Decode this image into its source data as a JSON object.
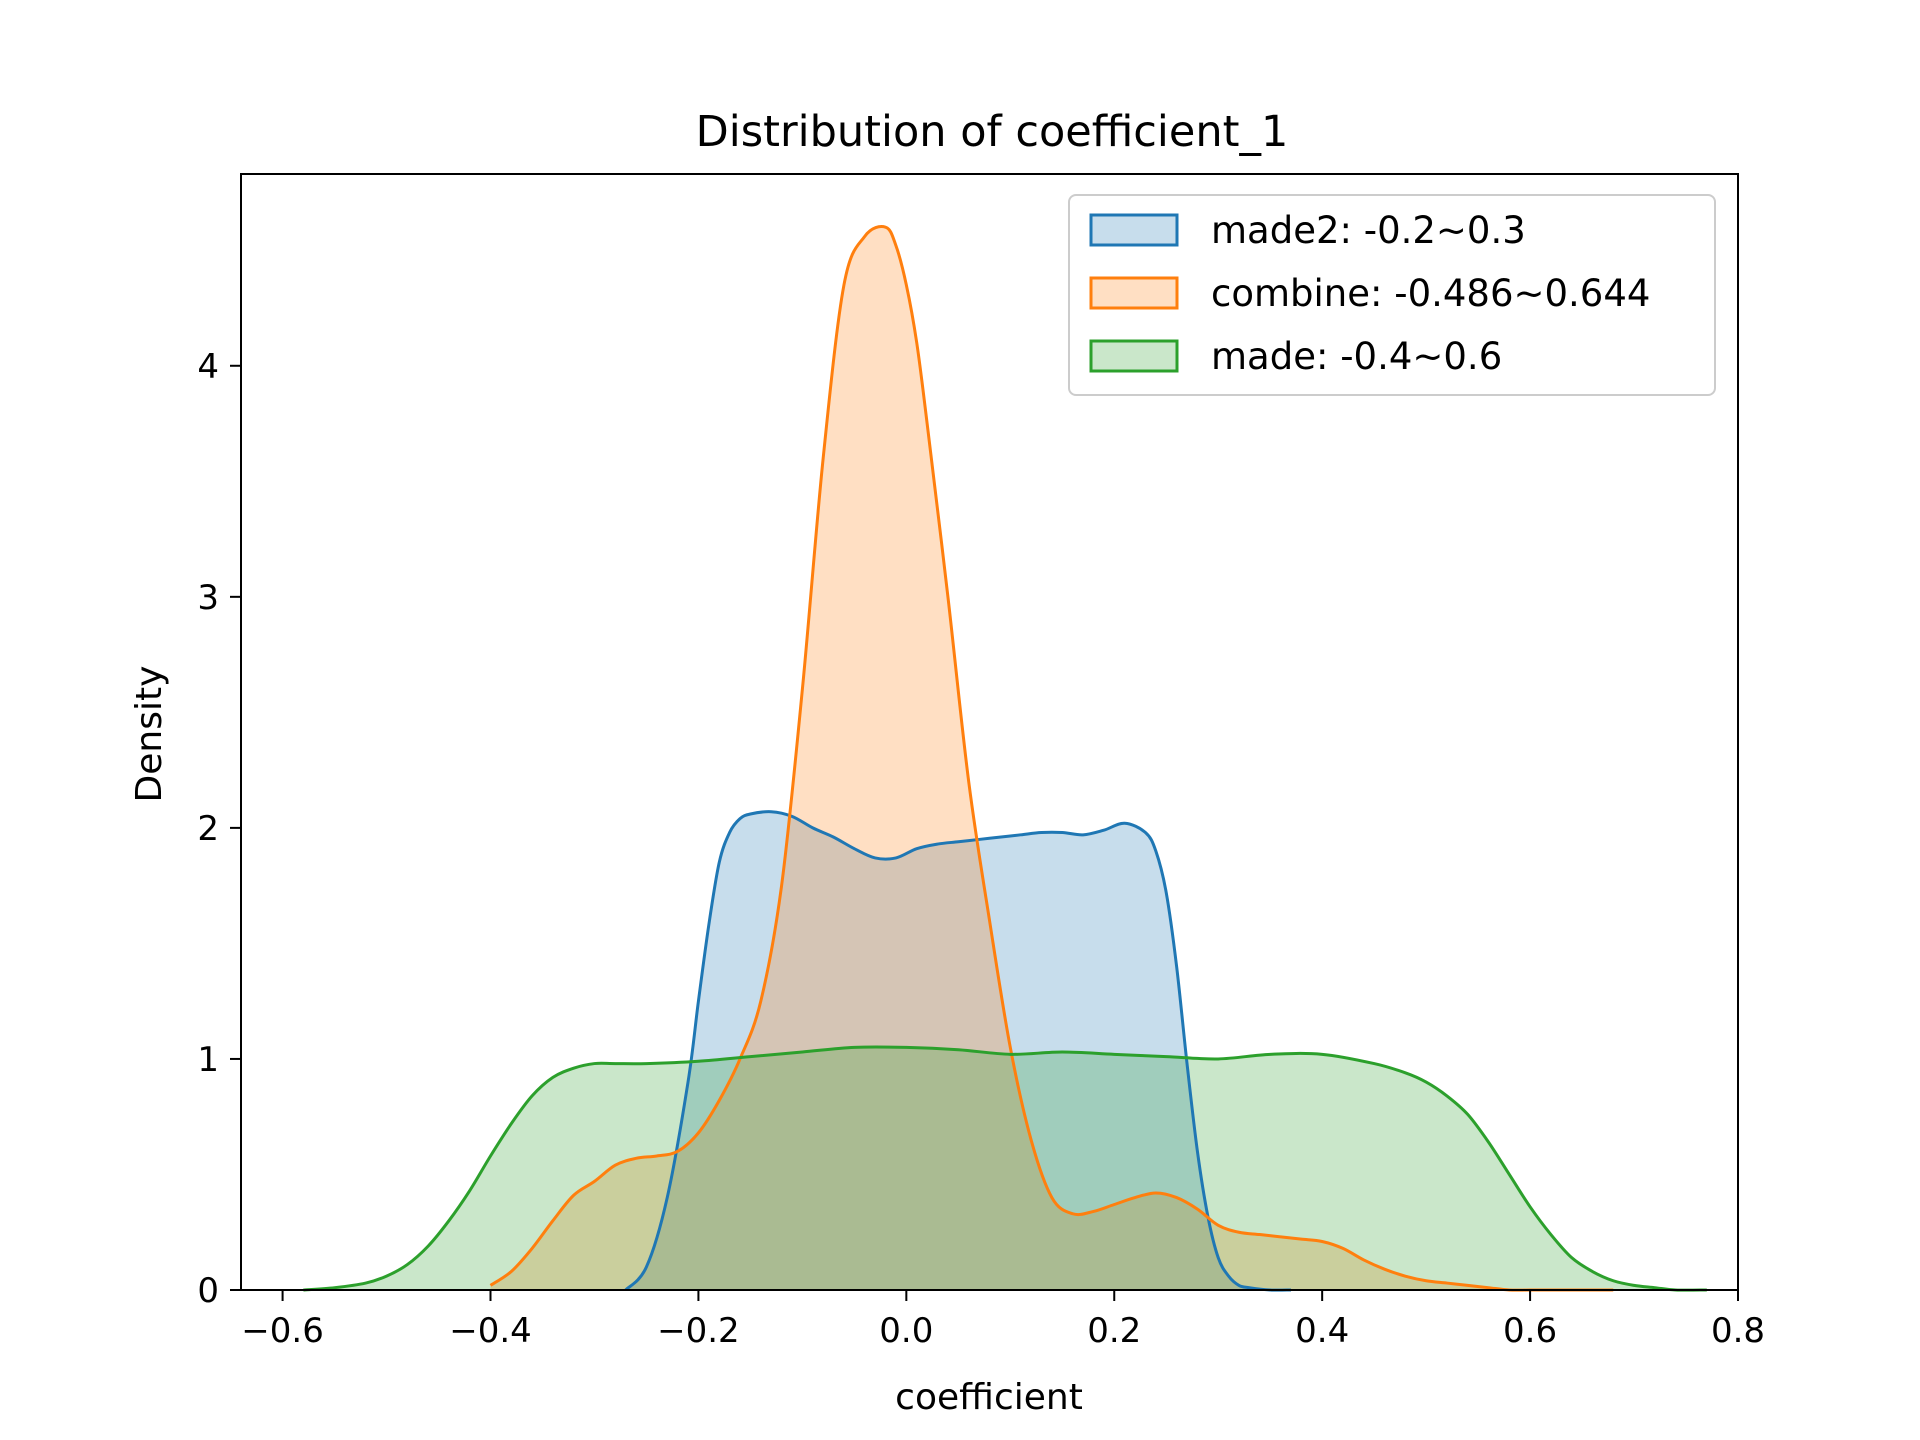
{
  "chart_data": {
    "type": "area",
    "kind": "kde",
    "title": "Distribution of coefficient_1",
    "xlabel": "coefficient",
    "ylabel": "Density",
    "xlim": [
      -0.64,
      0.8
    ],
    "ylim": [
      0,
      4.83
    ],
    "xticks": [
      -0.6,
      -0.4,
      -0.2,
      0.0,
      0.2,
      0.4,
      0.6,
      0.8
    ],
    "xtick_labels": [
      "−0.6",
      "−0.4",
      "−0.2",
      "0.0",
      "0.2",
      "0.4",
      "0.6",
      "0.8"
    ],
    "yticks": [
      0,
      1,
      2,
      3,
      4
    ],
    "ytick_labels": [
      "0",
      "1",
      "2",
      "3",
      "4"
    ],
    "grid": false,
    "legend_position": "top-right",
    "series": [
      {
        "name": "made2: -0.2~0.3",
        "color": "#1f77b4",
        "x": [
          -0.27,
          -0.25,
          -0.23,
          -0.21,
          -0.2,
          -0.19,
          -0.18,
          -0.17,
          -0.16,
          -0.15,
          -0.13,
          -0.11,
          -0.09,
          -0.07,
          -0.05,
          -0.03,
          -0.01,
          0.01,
          0.03,
          0.05,
          0.07,
          0.09,
          0.11,
          0.13,
          0.15,
          0.17,
          0.19,
          0.21,
          0.23,
          0.24,
          0.25,
          0.26,
          0.27,
          0.28,
          0.29,
          0.3,
          0.31,
          0.32,
          0.33,
          0.35,
          0.37
        ],
        "values": [
          0.0,
          0.1,
          0.4,
          0.9,
          1.25,
          1.58,
          1.85,
          1.98,
          2.04,
          2.06,
          2.07,
          2.05,
          2.0,
          1.96,
          1.91,
          1.87,
          1.87,
          1.91,
          1.93,
          1.94,
          1.95,
          1.96,
          1.97,
          1.98,
          1.98,
          1.97,
          1.99,
          2.02,
          1.98,
          1.9,
          1.72,
          1.4,
          0.98,
          0.6,
          0.32,
          0.14,
          0.06,
          0.02,
          0.01,
          0.0,
          0.0
        ]
      },
      {
        "name": "combine: -0.486~0.644",
        "color": "#ff7f0e",
        "x": [
          -0.4,
          -0.38,
          -0.36,
          -0.34,
          -0.32,
          -0.3,
          -0.28,
          -0.26,
          -0.24,
          -0.22,
          -0.2,
          -0.18,
          -0.16,
          -0.14,
          -0.12,
          -0.1,
          -0.08,
          -0.06,
          -0.04,
          -0.02,
          -0.01,
          0.0,
          0.01,
          0.02,
          0.04,
          0.06,
          0.08,
          0.1,
          0.12,
          0.14,
          0.16,
          0.18,
          0.2,
          0.22,
          0.24,
          0.26,
          0.28,
          0.3,
          0.32,
          0.34,
          0.36,
          0.38,
          0.4,
          0.42,
          0.44,
          0.46,
          0.48,
          0.5,
          0.52,
          0.54,
          0.56,
          0.58,
          0.6,
          0.62,
          0.64,
          0.66,
          0.68
        ],
        "values": [
          0.02,
          0.08,
          0.18,
          0.3,
          0.41,
          0.47,
          0.54,
          0.57,
          0.58,
          0.6,
          0.68,
          0.82,
          1.0,
          1.25,
          1.75,
          2.6,
          3.6,
          4.35,
          4.56,
          4.6,
          4.52,
          4.35,
          4.1,
          3.75,
          3.0,
          2.2,
          1.6,
          1.05,
          0.65,
          0.4,
          0.33,
          0.34,
          0.37,
          0.4,
          0.42,
          0.4,
          0.35,
          0.28,
          0.25,
          0.24,
          0.23,
          0.22,
          0.21,
          0.18,
          0.13,
          0.09,
          0.06,
          0.04,
          0.03,
          0.02,
          0.01,
          0.0,
          0.0,
          0.0,
          0.0,
          0.0,
          0.0
        ]
      },
      {
        "name": "made: -0.4~0.6",
        "color": "#2ca02c",
        "x": [
          -0.58,
          -0.55,
          -0.52,
          -0.5,
          -0.48,
          -0.46,
          -0.44,
          -0.42,
          -0.4,
          -0.38,
          -0.36,
          -0.34,
          -0.32,
          -0.3,
          -0.28,
          -0.25,
          -0.2,
          -0.15,
          -0.1,
          -0.05,
          0.0,
          0.05,
          0.1,
          0.15,
          0.2,
          0.25,
          0.3,
          0.35,
          0.4,
          0.45,
          0.48,
          0.5,
          0.52,
          0.54,
          0.56,
          0.58,
          0.6,
          0.62,
          0.64,
          0.66,
          0.68,
          0.7,
          0.72,
          0.74,
          0.77
        ],
        "values": [
          0.0,
          0.01,
          0.03,
          0.06,
          0.11,
          0.19,
          0.3,
          0.43,
          0.58,
          0.72,
          0.84,
          0.92,
          0.96,
          0.98,
          0.98,
          0.98,
          0.99,
          1.01,
          1.03,
          1.05,
          1.05,
          1.04,
          1.02,
          1.03,
          1.02,
          1.01,
          1.0,
          1.02,
          1.02,
          0.98,
          0.94,
          0.9,
          0.84,
          0.76,
          0.64,
          0.5,
          0.36,
          0.24,
          0.14,
          0.08,
          0.04,
          0.02,
          0.01,
          0.0,
          0.0
        ]
      }
    ]
  }
}
